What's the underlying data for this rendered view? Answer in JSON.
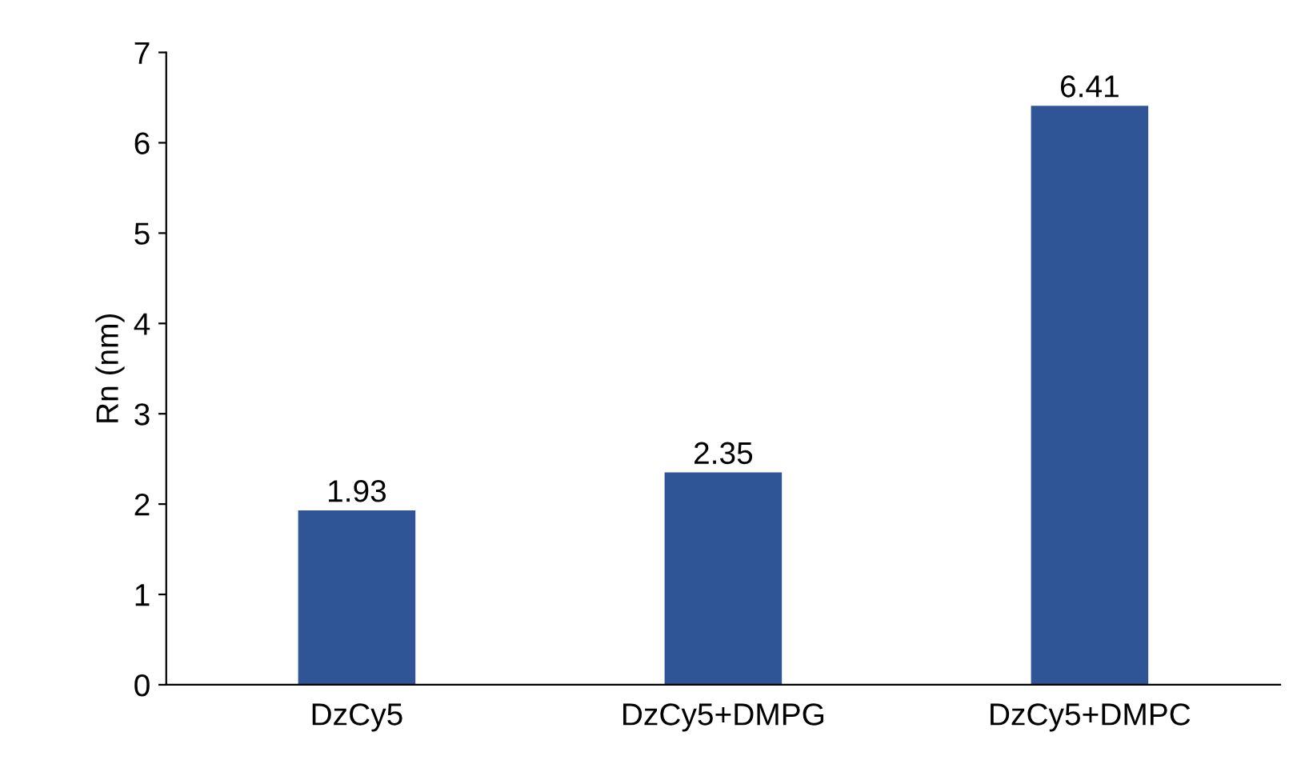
{
  "chart_data": {
    "type": "bar",
    "ylabel": "Rn (nm)",
    "categories": [
      "DzCy5",
      "DzCy5+DMPG",
      "DzCy5+DMPC"
    ],
    "values": [
      1.93,
      2.35,
      6.41
    ],
    "color": "#2f5597",
    "ylim": [
      0,
      7
    ],
    "yticks": [
      0,
      1,
      2,
      3,
      4,
      5,
      6,
      7
    ],
    "grid": false,
    "data_labels": true
  }
}
